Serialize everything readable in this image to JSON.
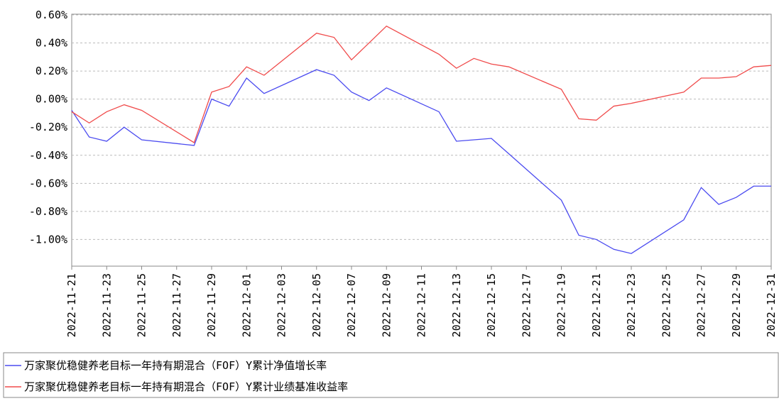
{
  "chart_data": {
    "type": "line",
    "x": [
      "2022-11-21",
      "2022-11-22",
      "2022-11-23",
      "2022-11-24",
      "2022-11-25",
      "2022-11-28",
      "2022-11-29",
      "2022-11-30",
      "2022-12-01",
      "2022-12-02",
      "2022-12-05",
      "2022-12-06",
      "2022-12-07",
      "2022-12-08",
      "2022-12-09",
      "2022-12-12",
      "2022-12-13",
      "2022-12-14",
      "2022-12-15",
      "2022-12-16",
      "2022-12-19",
      "2022-12-20",
      "2022-12-21",
      "2022-12-22",
      "2022-12-23",
      "2022-12-26",
      "2022-12-27",
      "2022-12-28",
      "2022-12-29",
      "2022-12-30",
      "2022-12-31"
    ],
    "series": [
      {
        "name": "万家聚优稳健养老目标一年持有期混合（FOF）Y累计净值增长率",
        "color": "#4b4bf0",
        "values": [
          -0.08,
          -0.27,
          -0.3,
          -0.2,
          -0.29,
          -0.33,
          0.0,
          -0.05,
          0.15,
          0.04,
          0.21,
          0.17,
          0.05,
          -0.01,
          0.08,
          -0.09,
          -0.3,
          -0.29,
          -0.28,
          -0.39,
          -0.72,
          -0.97,
          -1.0,
          -1.07,
          -1.1,
          -0.86,
          -0.63,
          -0.75,
          -0.7,
          -0.62,
          -0.62
        ]
      },
      {
        "name": "万家聚优稳健养老目标一年持有期混合（FOF）Y累计业绩基准收益率",
        "color": "#f04b4b",
        "values": [
          -0.09,
          -0.17,
          -0.09,
          -0.04,
          -0.08,
          -0.31,
          0.05,
          0.09,
          0.23,
          0.17,
          0.47,
          0.44,
          0.28,
          0.4,
          0.52,
          0.32,
          0.22,
          0.29,
          0.25,
          0.23,
          0.07,
          -0.14,
          -0.15,
          -0.05,
          -0.03,
          0.05,
          0.15,
          0.15,
          0.16,
          0.23,
          0.24
        ]
      }
    ],
    "xlim": [
      "2022-11-21",
      "2022-12-31"
    ],
    "xticks": [
      "2022-11-21",
      "2022-11-23",
      "2022-11-25",
      "2022-11-27",
      "2022-11-29",
      "2022-12-01",
      "2022-12-03",
      "2022-12-05",
      "2022-12-07",
      "2022-12-09",
      "2022-12-11",
      "2022-12-13",
      "2022-12-15",
      "2022-12-17",
      "2022-12-19",
      "2022-12-21",
      "2022-12-23",
      "2022-12-25",
      "2022-12-27",
      "2022-12-29",
      "2022-12-31"
    ],
    "ylim": [
      -1.19,
      0.6
    ],
    "yticks": [
      {
        "value": 0.6,
        "label": "0.60%"
      },
      {
        "value": 0.4,
        "label": "0.40%"
      },
      {
        "value": 0.2,
        "label": "0.20%"
      },
      {
        "value": 0,
        "label": "0.00%"
      },
      {
        "value": -0.2,
        "label": "-0.20%"
      },
      {
        "value": -0.4,
        "label": "-0.40%"
      },
      {
        "value": -0.6,
        "label": "-0.60%"
      },
      {
        "value": -0.8,
        "label": "-0.80%"
      },
      {
        "value": -1,
        "label": "-1.00%"
      }
    ],
    "grid": true
  }
}
